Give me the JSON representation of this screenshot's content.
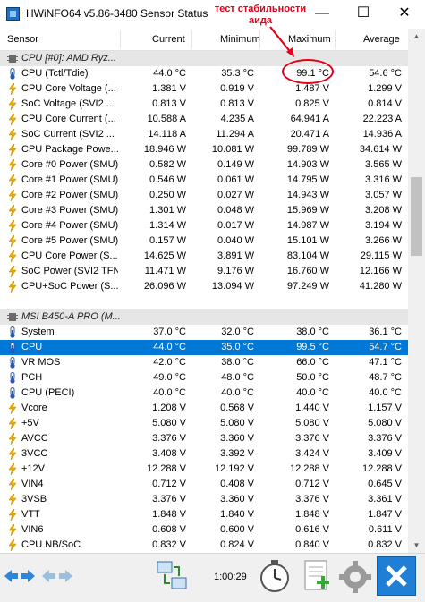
{
  "window": {
    "title": "HWiNFO64 v5.86-3480 Sensor Status",
    "minimize_glyph": "—",
    "maximize_glyph": "☐",
    "close_glyph": "✕"
  },
  "annotation": {
    "line1": "тест стабильности",
    "line2": "аида",
    "color": "#e2001a"
  },
  "columns": {
    "sensor": "Sensor",
    "current": "Current",
    "minimum": "Minimum",
    "maximum": "Maximum",
    "average": "Average"
  },
  "rows": [
    {
      "type": "group",
      "name": "CPU [#0]: AMD Ryz...",
      "icon": "chip-icon"
    },
    {
      "type": "sensor",
      "icon": "thermometer-icon",
      "name": "CPU (Tctl/Tdie)",
      "current": "44.0 °C",
      "minimum": "35.3 °C",
      "maximum": "99.1 °C",
      "average": "54.6 °C"
    },
    {
      "type": "sensor",
      "icon": "lightning-icon",
      "name": "CPU Core Voltage (...",
      "current": "1.381 V",
      "minimum": "0.919 V",
      "maximum": "1.487 V",
      "average": "1.299 V"
    },
    {
      "type": "sensor",
      "icon": "lightning-icon",
      "name": "SoC Voltage (SVI2 ...",
      "current": "0.813 V",
      "minimum": "0.813 V",
      "maximum": "0.825 V",
      "average": "0.814 V"
    },
    {
      "type": "sensor",
      "icon": "lightning-icon",
      "name": "CPU Core Current (...",
      "current": "10.588 A",
      "minimum": "4.235 A",
      "maximum": "64.941 A",
      "average": "22.223 A"
    },
    {
      "type": "sensor",
      "icon": "lightning-icon",
      "name": "SoC Current (SVI2 ...",
      "current": "14.118 A",
      "minimum": "11.294 A",
      "maximum": "20.471 A",
      "average": "14.936 A"
    },
    {
      "type": "sensor",
      "icon": "lightning-icon",
      "name": "CPU Package Powe...",
      "current": "18.946 W",
      "minimum": "10.081 W",
      "maximum": "99.789 W",
      "average": "34.614 W"
    },
    {
      "type": "sensor",
      "icon": "lightning-icon",
      "name": "Core #0 Power (SMU)",
      "current": "0.582 W",
      "minimum": "0.149 W",
      "maximum": "14.903 W",
      "average": "3.565 W"
    },
    {
      "type": "sensor",
      "icon": "lightning-icon",
      "name": "Core #1 Power (SMU)",
      "current": "0.546 W",
      "minimum": "0.061 W",
      "maximum": "14.795 W",
      "average": "3.316 W"
    },
    {
      "type": "sensor",
      "icon": "lightning-icon",
      "name": "Core #2 Power (SMU)",
      "current": "0.250 W",
      "minimum": "0.027 W",
      "maximum": "14.943 W",
      "average": "3.057 W"
    },
    {
      "type": "sensor",
      "icon": "lightning-icon",
      "name": "Core #3 Power (SMU)",
      "current": "1.301 W",
      "minimum": "0.048 W",
      "maximum": "15.969 W",
      "average": "3.208 W"
    },
    {
      "type": "sensor",
      "icon": "lightning-icon",
      "name": "Core #4 Power (SMU)",
      "current": "1.314 W",
      "minimum": "0.017 W",
      "maximum": "14.987 W",
      "average": "3.194 W"
    },
    {
      "type": "sensor",
      "icon": "lightning-icon",
      "name": "Core #5 Power (SMU)",
      "current": "0.157 W",
      "minimum": "0.040 W",
      "maximum": "15.101 W",
      "average": "3.266 W"
    },
    {
      "type": "sensor",
      "icon": "lightning-icon",
      "name": "CPU Core Power (S...",
      "current": "14.625 W",
      "minimum": "3.891 W",
      "maximum": "83.104 W",
      "average": "29.115 W"
    },
    {
      "type": "sensor",
      "icon": "lightning-icon",
      "name": "SoC Power (SVI2 TFN)",
      "current": "11.471 W",
      "minimum": "9.176 W",
      "maximum": "16.760 W",
      "average": "12.166 W"
    },
    {
      "type": "sensor",
      "icon": "lightning-icon",
      "name": "CPU+SoC Power (S...",
      "current": "26.096 W",
      "minimum": "13.094 W",
      "maximum": "97.249 W",
      "average": "41.280 W"
    },
    {
      "type": "blank"
    },
    {
      "type": "group",
      "name": "MSI B450-A PRO (M...",
      "icon": "chip-icon"
    },
    {
      "type": "sensor",
      "icon": "thermometer-icon",
      "name": "System",
      "current": "37.0 °C",
      "minimum": "32.0 °C",
      "maximum": "38.0 °C",
      "average": "36.1 °C"
    },
    {
      "type": "sensor",
      "icon": "thermometer-icon",
      "name": "CPU",
      "current": "44.0 °C",
      "minimum": "35.0 °C",
      "maximum": "99.5 °C",
      "average": "54.7 °C",
      "selected": true
    },
    {
      "type": "sensor",
      "icon": "thermometer-icon",
      "name": "VR MOS",
      "current": "42.0 °C",
      "minimum": "38.0 °C",
      "maximum": "66.0 °C",
      "average": "47.1 °C"
    },
    {
      "type": "sensor",
      "icon": "thermometer-icon",
      "name": "PCH",
      "current": "49.0 °C",
      "minimum": "48.0 °C",
      "maximum": "50.0 °C",
      "average": "48.7 °C"
    },
    {
      "type": "sensor",
      "icon": "thermometer-icon",
      "name": "CPU (PECI)",
      "current": "40.0 °C",
      "minimum": "40.0 °C",
      "maximum": "40.0 °C",
      "average": "40.0 °C"
    },
    {
      "type": "sensor",
      "icon": "lightning-icon",
      "name": "Vcore",
      "current": "1.208 V",
      "minimum": "0.568 V",
      "maximum": "1.440 V",
      "average": "1.157 V"
    },
    {
      "type": "sensor",
      "icon": "lightning-icon",
      "name": "+5V",
      "current": "5.080 V",
      "minimum": "5.080 V",
      "maximum": "5.080 V",
      "average": "5.080 V"
    },
    {
      "type": "sensor",
      "icon": "lightning-icon",
      "name": "AVCC",
      "current": "3.376 V",
      "minimum": "3.360 V",
      "maximum": "3.376 V",
      "average": "3.376 V"
    },
    {
      "type": "sensor",
      "icon": "lightning-icon",
      "name": "3VCC",
      "current": "3.408 V",
      "minimum": "3.392 V",
      "maximum": "3.424 V",
      "average": "3.409 V"
    },
    {
      "type": "sensor",
      "icon": "lightning-icon",
      "name": "+12V",
      "current": "12.288 V",
      "minimum": "12.192 V",
      "maximum": "12.288 V",
      "average": "12.288 V"
    },
    {
      "type": "sensor",
      "icon": "lightning-icon",
      "name": "VIN4",
      "current": "0.712 V",
      "minimum": "0.408 V",
      "maximum": "0.712 V",
      "average": "0.645 V"
    },
    {
      "type": "sensor",
      "icon": "lightning-icon",
      "name": "3VSB",
      "current": "3.376 V",
      "minimum": "3.360 V",
      "maximum": "3.376 V",
      "average": "3.361 V"
    },
    {
      "type": "sensor",
      "icon": "lightning-icon",
      "name": "VTT",
      "current": "1.848 V",
      "minimum": "1.840 V",
      "maximum": "1.848 V",
      "average": "1.847 V"
    },
    {
      "type": "sensor",
      "icon": "lightning-icon",
      "name": "VIN6",
      "current": "0.608 V",
      "minimum": "0.600 V",
      "maximum": "0.616 V",
      "average": "0.611 V"
    },
    {
      "type": "sensor",
      "icon": "lightning-icon",
      "name": "CPU NB/SoC",
      "current": "0.832 V",
      "minimum": "0.824 V",
      "maximum": "0.840 V",
      "average": "0.832 V"
    }
  ],
  "toolbar": {
    "elapsed_time": "1:00:29",
    "buttons": [
      "nav-left-right-icon",
      "nav-arrows-dim-icon",
      "network-icon",
      "clock-icon",
      "add-report-icon",
      "settings-gear-icon",
      "close-x-icon"
    ]
  },
  "colors": {
    "selection": "#0078d7",
    "group_bg": "#e6e6e6",
    "thermometer": "#2a5ab0",
    "lightning": "#e8b000",
    "close_button": "#1f7fd6"
  }
}
